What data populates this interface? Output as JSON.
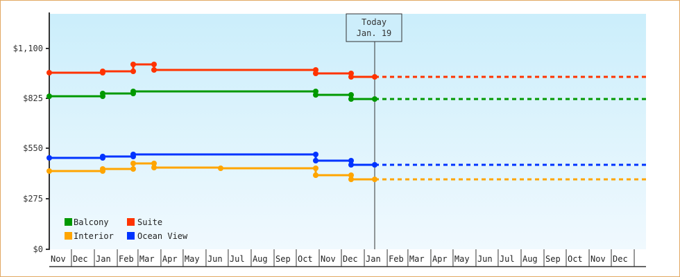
{
  "chart_data": {
    "type": "line",
    "title": "",
    "xlabel": "",
    "ylabel": "",
    "ylim": [
      0,
      1240
    ],
    "y_ticks": [
      "$0",
      "$275",
      "$550",
      "$825",
      "$1,100"
    ],
    "y_tick_values": [
      0,
      275,
      550,
      825,
      1100
    ],
    "x_ticks": [
      "Nov",
      "Dec",
      "Jan",
      "Feb",
      "Mar",
      "Apr",
      "May",
      "Jun",
      "Jul",
      "Aug",
      "Sep",
      "Oct",
      "Nov",
      "Dec",
      "Jan",
      "Feb",
      "Mar",
      "Apr",
      "May",
      "Jun",
      "Jul",
      "Aug",
      "Sep",
      "Oct",
      "Nov",
      "Dec"
    ],
    "today_marker": {
      "line1": "Today",
      "line2": "Jan. 19"
    },
    "legend": [
      "Balcony",
      "Suite",
      "Interior",
      "Ocean View"
    ],
    "legend_position": "lower-left inside",
    "grid": false,
    "step_chart": true,
    "forecast": "dashed flat continuation after Today",
    "series": [
      {
        "name": "Suite",
        "color": "#ff3300",
        "points": [
          [
            "Nov start",
            967
          ],
          [
            "Jan 1",
            967
          ],
          [
            "Jan 1",
            974
          ],
          [
            "Feb end",
            974
          ],
          [
            "Feb end",
            1012
          ],
          [
            "Mar end",
            1012
          ],
          [
            "Mar end",
            982
          ],
          [
            "Oct end",
            982
          ],
          [
            "Oct end",
            963
          ],
          [
            "Dec end",
            963
          ],
          [
            "Dec end",
            944
          ],
          [
            "Jan 19",
            944
          ]
        ]
      },
      {
        "name": "Balcony",
        "color": "#009900",
        "points": [
          [
            "Nov start",
            838
          ],
          [
            "Jan 1",
            838
          ],
          [
            "Jan 1",
            853
          ],
          [
            "Feb end",
            853
          ],
          [
            "Feb end",
            864
          ],
          [
            "Oct end",
            864
          ],
          [
            "Oct end",
            845
          ],
          [
            "Dec end",
            845
          ],
          [
            "Dec end",
            822
          ],
          [
            "Jan 19",
            822
          ]
        ]
      },
      {
        "name": "Ocean View",
        "color": "#0033ff",
        "points": [
          [
            "Nov start",
            500
          ],
          [
            "Jan 1",
            500
          ],
          [
            "Jan 1",
            508
          ],
          [
            "Feb end",
            508
          ],
          [
            "Feb end",
            519
          ],
          [
            "Oct end",
            519
          ],
          [
            "Oct end",
            485
          ],
          [
            "Dec end",
            485
          ],
          [
            "Dec end",
            462
          ],
          [
            "Jan 19",
            462
          ]
        ]
      },
      {
        "name": "Interior",
        "color": "#ffa500",
        "points": [
          [
            "Nov start",
            428
          ],
          [
            "Jan 1",
            428
          ],
          [
            "Jan 1",
            440
          ],
          [
            "Feb end",
            440
          ],
          [
            "Feb end",
            470
          ],
          [
            "Mar end",
            470
          ],
          [
            "Mar end",
            447
          ],
          [
            "Jun mid",
            444
          ],
          [
            "Oct end",
            444
          ],
          [
            "Oct end",
            405
          ],
          [
            "Dec end",
            405
          ],
          [
            "Dec end",
            383
          ],
          [
            "Jan 19",
            383
          ]
        ]
      }
    ]
  },
  "legend": {
    "items": [
      {
        "label": "Balcony",
        "color": "#009900"
      },
      {
        "label": "Suite",
        "color": "#ff3300"
      },
      {
        "label": "Interior",
        "color": "#ffa500"
      },
      {
        "label": "Ocean View",
        "color": "#0033ff"
      }
    ]
  },
  "today": {
    "line1": "Today",
    "line2": "Jan. 19"
  },
  "yaxis": {
    "labels": [
      "$1,100",
      "$825",
      "$550",
      "$275",
      "$0"
    ]
  },
  "xaxis": {
    "months": [
      "Nov",
      "Dec",
      "Jan",
      "Feb",
      "Mar",
      "Apr",
      "May",
      "Jun",
      "Jul",
      "Aug",
      "Sep",
      "Oct",
      "Nov",
      "Dec",
      "Jan",
      "Feb",
      "Mar",
      "Apr",
      "May",
      "Jun",
      "Jul",
      "Aug",
      "Sep",
      "Oct",
      "Nov",
      "Dec"
    ]
  }
}
